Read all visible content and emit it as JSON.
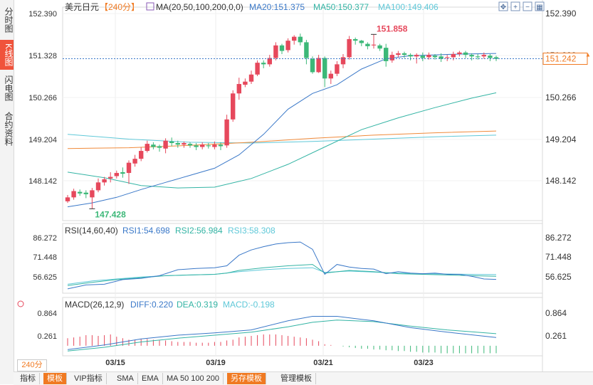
{
  "side_tabs": [
    {
      "label": "分时图",
      "active": false
    },
    {
      "label": "K线图",
      "active": true
    },
    {
      "label": "闪电图",
      "active": false
    },
    {
      "label": "合约资料",
      "active": false
    }
  ],
  "header": {
    "symbol": "美元日元",
    "period": "【240分】",
    "ma_label": "MA(20,50,100,200,0,0)",
    "ma20": "MA20:151.375",
    "ma50": "MA50:150.377",
    "ma100": "MA100:149.406"
  },
  "toolbar_icons": [
    "move-icon",
    "zoom-in-icon",
    "zoom-out-icon",
    "grid-icon",
    "fullscreen-icon"
  ],
  "price_axis": [
    "152.390",
    "151.328",
    "150.266",
    "149.204",
    "148.142"
  ],
  "current_price": "151.242",
  "high_marker": "151.858",
  "low_marker": "147.428",
  "date_labels": [
    "03/15",
    "03/19",
    "03/21",
    "03/23"
  ],
  "rsi": {
    "label": "RSI(14,60,40)",
    "rsi1": "RSI1:54.698",
    "rsi2": "RSI2:56.984",
    "rsi3": "RSI3:58.308",
    "axis": [
      "86.272",
      "71.448",
      "56.625"
    ]
  },
  "macd": {
    "label": "MACD(26,12,9)",
    "diff": "DIFF:0.220",
    "dea": "DEA:0.319",
    "macd": "MACD:-0.198",
    "axis": [
      "0.864",
      "0.261"
    ]
  },
  "period_selector": "240分",
  "bottom_bar": [
    "指标",
    "模板",
    "VIP指标",
    "SMA",
    "EMA",
    "MA 50 100 200",
    "另存模板",
    "管理模板"
  ],
  "colors": {
    "up": "#e6485c",
    "down": "#3cb878",
    "ma20": "#3a78c8",
    "ma50": "#33b4a4",
    "ma100": "#f08a3a",
    "ma200": "#5fc8d8",
    "rsi1": "#3a78c8",
    "rsi2": "#33b4a4",
    "rsi3": "#5fc8d8",
    "dea": "#33b4a4",
    "diff": "#3a78c8",
    "accent": "#f07a22"
  },
  "chart_data": {
    "type": "candlestick",
    "ylim": [
      147.2,
      152.6
    ],
    "candles": [
      [
        147.62,
        147.72,
        147.58,
        147.78
      ],
      [
        147.72,
        147.88,
        147.66,
        147.94
      ],
      [
        147.86,
        147.82,
        147.76,
        147.92
      ],
      [
        147.84,
        147.8,
        147.7,
        147.9
      ],
      [
        147.72,
        147.9,
        147.43,
        147.96
      ],
      [
        147.9,
        148.1,
        147.85,
        148.2
      ],
      [
        148.1,
        148.18,
        148.02,
        148.24
      ],
      [
        148.2,
        148.24,
        148.1,
        148.36
      ],
      [
        148.26,
        148.34,
        148.2,
        148.4
      ],
      [
        148.36,
        148.32,
        148.22,
        148.48
      ],
      [
        148.34,
        148.6,
        148.06,
        148.66
      ],
      [
        148.58,
        148.7,
        148.5,
        148.8
      ],
      [
        148.7,
        148.9,
        148.64,
        149.0
      ],
      [
        148.9,
        149.08,
        148.86,
        149.16
      ],
      [
        149.06,
        149.0,
        148.94,
        149.12
      ],
      [
        149.02,
        148.98,
        148.88,
        149.06
      ],
      [
        148.96,
        149.16,
        148.84,
        149.22
      ],
      [
        149.14,
        149.1,
        149.02,
        149.24
      ],
      [
        149.1,
        149.06,
        148.98,
        149.16
      ],
      [
        149.06,
        149.1,
        148.98,
        149.14
      ],
      [
        149.08,
        149.04,
        148.98,
        149.12
      ],
      [
        149.04,
        149.0,
        148.92,
        149.1
      ],
      [
        149.0,
        149.06,
        148.94,
        149.12
      ],
      [
        149.04,
        149.02,
        148.96,
        149.1
      ],
      [
        149.0,
        149.06,
        148.94,
        149.14
      ],
      [
        149.06,
        149.02,
        148.92,
        149.12
      ],
      [
        149.04,
        149.7,
        148.98,
        149.82
      ],
      [
        149.7,
        150.36,
        149.64,
        150.44
      ],
      [
        150.36,
        150.6,
        150.2,
        150.76
      ],
      [
        150.58,
        150.66,
        150.52,
        150.74
      ],
      [
        150.66,
        150.84,
        150.6,
        150.94
      ],
      [
        150.84,
        151.14,
        150.8,
        151.2
      ],
      [
        151.14,
        151.1,
        151.0,
        151.2
      ],
      [
        151.1,
        151.26,
        151.04,
        151.34
      ],
      [
        151.26,
        151.58,
        151.2,
        151.66
      ],
      [
        151.58,
        151.44,
        151.36,
        151.62
      ],
      [
        151.46,
        151.7,
        151.4,
        151.76
      ],
      [
        151.7,
        151.8,
        151.6,
        151.84
      ],
      [
        151.8,
        151.66,
        151.58,
        151.88
      ],
      [
        151.66,
        151.26,
        151.1,
        151.72
      ],
      [
        151.24,
        150.9,
        150.86,
        151.3
      ],
      [
        150.9,
        151.26,
        150.88,
        151.34
      ],
      [
        151.26,
        150.74,
        150.52,
        151.3
      ],
      [
        150.74,
        150.86,
        150.6,
        150.94
      ],
      [
        150.86,
        151.1,
        150.8,
        151.18
      ],
      [
        151.1,
        151.28,
        151.0,
        151.36
      ],
      [
        151.28,
        151.74,
        151.22,
        151.82
      ],
      [
        151.74,
        151.7,
        151.6,
        151.78
      ],
      [
        151.7,
        151.64,
        151.56,
        151.72
      ],
      [
        151.62,
        151.56,
        151.48,
        151.66
      ],
      [
        151.58,
        151.6,
        151.5,
        151.86
      ],
      [
        151.58,
        151.5,
        151.44,
        151.62
      ],
      [
        151.52,
        151.18,
        151.04,
        151.62
      ],
      [
        151.2,
        151.34,
        151.14,
        151.42
      ],
      [
        151.34,
        151.38,
        151.28,
        151.44
      ],
      [
        151.38,
        151.34,
        151.26,
        151.42
      ],
      [
        151.34,
        151.3,
        151.2,
        151.38
      ],
      [
        151.3,
        151.34,
        151.12,
        151.38
      ],
      [
        151.32,
        151.26,
        151.18,
        151.4
      ],
      [
        151.28,
        151.34,
        151.22,
        151.4
      ],
      [
        151.32,
        151.28,
        151.22,
        151.36
      ],
      [
        151.3,
        151.24,
        151.16,
        151.38
      ],
      [
        151.26,
        151.28,
        151.18,
        151.34
      ],
      [
        151.28,
        151.36,
        151.2,
        151.42
      ],
      [
        151.36,
        151.4,
        151.3,
        151.44
      ],
      [
        151.4,
        151.34,
        151.26,
        151.44
      ],
      [
        151.34,
        151.3,
        151.2,
        151.38
      ],
      [
        151.3,
        151.28,
        151.22,
        151.36
      ],
      [
        151.3,
        151.34,
        151.24,
        151.4
      ],
      [
        151.32,
        151.26,
        151.18,
        151.36
      ],
      [
        151.28,
        151.24,
        151.18,
        151.32
      ]
    ],
    "ma20": [
      [
        0,
        147.48
      ],
      [
        4,
        147.58
      ],
      [
        8,
        147.72
      ],
      [
        12,
        147.92
      ],
      [
        16,
        148.1
      ],
      [
        20,
        148.28
      ],
      [
        24,
        148.46
      ],
      [
        28,
        148.8
      ],
      [
        32,
        149.32
      ],
      [
        36,
        149.96
      ],
      [
        40,
        150.36
      ],
      [
        44,
        150.58
      ],
      [
        48,
        150.98
      ],
      [
        52,
        151.24
      ],
      [
        56,
        151.32
      ],
      [
        60,
        151.34
      ],
      [
        64,
        151.36
      ],
      [
        70,
        151.375
      ]
    ],
    "ma50": [
      [
        0,
        148.36
      ],
      [
        6,
        148.22
      ],
      [
        12,
        148.02
      ],
      [
        18,
        147.96
      ],
      [
        24,
        147.98
      ],
      [
        30,
        148.2
      ],
      [
        36,
        148.56
      ],
      [
        42,
        149.0
      ],
      [
        48,
        149.44
      ],
      [
        54,
        149.74
      ],
      [
        60,
        150.0
      ],
      [
        66,
        150.24
      ],
      [
        70,
        150.377
      ]
    ],
    "ma100": [
      [
        0,
        148.96
      ],
      [
        10,
        148.98
      ],
      [
        20,
        149.04
      ],
      [
        30,
        149.12
      ],
      [
        40,
        149.22
      ],
      [
        50,
        149.3
      ],
      [
        60,
        149.36
      ],
      [
        70,
        149.406
      ]
    ],
    "ma200": [
      [
        0,
        149.32
      ],
      [
        10,
        149.2
      ],
      [
        20,
        149.12
      ],
      [
        30,
        149.1
      ],
      [
        40,
        149.14
      ],
      [
        50,
        149.2
      ],
      [
        60,
        149.26
      ],
      [
        70,
        149.3
      ]
    ],
    "rsi_ylim": [
      45,
      90
    ],
    "rsi1": [
      [
        0,
        47.5
      ],
      [
        3,
        50.5
      ],
      [
        6,
        51.0
      ],
      [
        9,
        54.5
      ],
      [
        12,
        55.5
      ],
      [
        15,
        57.5
      ],
      [
        18,
        62.0
      ],
      [
        21,
        63.0
      ],
      [
        24,
        63.5
      ],
      [
        26,
        65.0
      ],
      [
        28,
        73.0
      ],
      [
        30,
        77.0
      ],
      [
        32,
        79.5
      ],
      [
        34,
        81.5
      ],
      [
        36,
        82.5
      ],
      [
        38,
        83.0
      ],
      [
        40,
        77.5
      ],
      [
        42,
        58.5
      ],
      [
        44,
        66.0
      ],
      [
        46,
        64.0
      ],
      [
        48,
        63.0
      ],
      [
        50,
        62.5
      ],
      [
        52,
        59.0
      ],
      [
        54,
        60.5
      ],
      [
        56,
        59.5
      ],
      [
        58,
        59.0
      ],
      [
        60,
        59.5
      ],
      [
        62,
        58.5
      ],
      [
        64,
        58.5
      ],
      [
        66,
        57.0
      ],
      [
        68,
        55.0
      ],
      [
        70,
        54.698
      ]
    ],
    "rsi2": [
      [
        0,
        50.0
      ],
      [
        4,
        52.5
      ],
      [
        8,
        54.5
      ],
      [
        12,
        56.0
      ],
      [
        16,
        57.5
      ],
      [
        20,
        58.0
      ],
      [
        24,
        58.5
      ],
      [
        26,
        59.5
      ],
      [
        28,
        61.5
      ],
      [
        32,
        63.5
      ],
      [
        36,
        65.0
      ],
      [
        40,
        66.0
      ],
      [
        42,
        59.5
      ],
      [
        46,
        61.5
      ],
      [
        50,
        60.5
      ],
      [
        54,
        59.0
      ],
      [
        58,
        58.5
      ],
      [
        62,
        58.0
      ],
      [
        66,
        57.5
      ],
      [
        70,
        56.984
      ]
    ],
    "rsi3": [
      [
        0,
        51.0
      ],
      [
        4,
        53.5
      ],
      [
        8,
        55.0
      ],
      [
        12,
        56.5
      ],
      [
        16,
        57.5
      ],
      [
        20,
        58.0
      ],
      [
        24,
        58.5
      ],
      [
        28,
        60.5
      ],
      [
        32,
        62.0
      ],
      [
        36,
        63.0
      ],
      [
        40,
        63.5
      ],
      [
        42,
        60.0
      ],
      [
        46,
        61.0
      ],
      [
        50,
        60.2
      ],
      [
        54,
        59.5
      ],
      [
        58,
        59.0
      ],
      [
        62,
        58.8
      ],
      [
        66,
        58.5
      ],
      [
        70,
        58.308
      ]
    ],
    "macd_ylim": [
      -0.25,
      0.95
    ],
    "diff": [
      [
        0,
        -0.1
      ],
      [
        6,
        0.02
      ],
      [
        12,
        0.18
      ],
      [
        18,
        0.28
      ],
      [
        24,
        0.34
      ],
      [
        30,
        0.42
      ],
      [
        36,
        0.66
      ],
      [
        40,
        0.78
      ],
      [
        44,
        0.78
      ],
      [
        50,
        0.66
      ],
      [
        56,
        0.48
      ],
      [
        62,
        0.36
      ],
      [
        70,
        0.22
      ]
    ],
    "dea": [
      [
        0,
        -0.14
      ],
      [
        6,
        -0.04
      ],
      [
        12,
        0.1
      ],
      [
        18,
        0.2
      ],
      [
        24,
        0.28
      ],
      [
        30,
        0.36
      ],
      [
        36,
        0.5
      ],
      [
        40,
        0.62
      ],
      [
        44,
        0.68
      ],
      [
        50,
        0.64
      ],
      [
        56,
        0.52
      ],
      [
        62,
        0.42
      ],
      [
        70,
        0.319
      ]
    ],
    "macd_hist": [
      0.2,
      0.22,
      0.24,
      0.28,
      0.28,
      0.26,
      0.28,
      0.3,
      0.24,
      0.2,
      0.16,
      0.16,
      0.18,
      0.18,
      0.16,
      0.14,
      0.14,
      0.12,
      0.1,
      0.1,
      0.1,
      0.08,
      0.08,
      0.08,
      0.1,
      0.1,
      0.14,
      0.16,
      0.22,
      0.24,
      0.26,
      0.28,
      0.3,
      0.3,
      0.3,
      0.28,
      0.26,
      0.24,
      0.22,
      0.2,
      0.16,
      0.12,
      0.04,
      0.02,
      0.0,
      -0.02,
      -0.04,
      -0.06,
      -0.08,
      -0.08,
      -0.1,
      -0.1,
      -0.12,
      -0.12,
      -0.14,
      -0.14,
      -0.16,
      -0.16,
      -0.18,
      -0.18,
      -0.18,
      -0.2,
      -0.2,
      -0.2,
      -0.2,
      -0.2,
      -0.2,
      -0.2,
      -0.2,
      -0.198,
      -0.198
    ]
  }
}
